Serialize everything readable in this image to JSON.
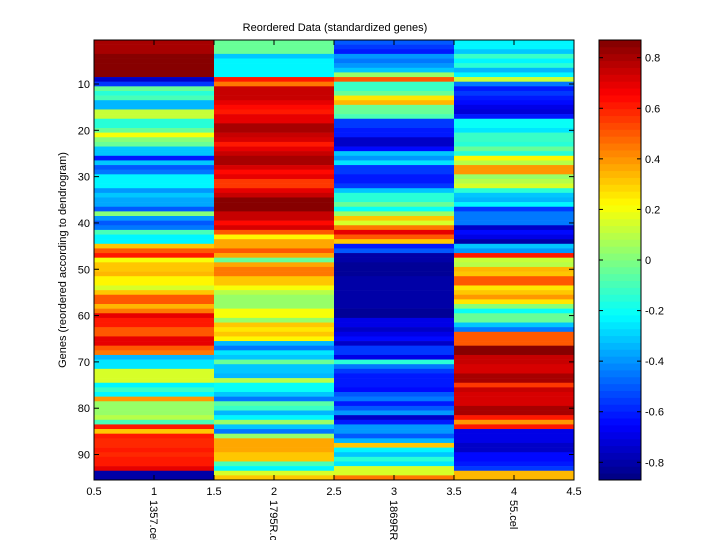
{
  "chart_data": {
    "type": "heatmap",
    "title": "Reordered Data (standardized genes)",
    "xlabel": "",
    "ylabel": "Genes (reordered according to dendrogram)",
    "colormap": "jet",
    "clim": [
      -0.87,
      0.87
    ],
    "xlim": [
      0.5,
      4.5
    ],
    "ylim": [
      0.5,
      95.5
    ],
    "y_reversed": true,
    "x_ticks": [
      "0.5",
      "1",
      "1.5",
      "2",
      "2.5",
      "3",
      "3.5",
      "4",
      "4.5"
    ],
    "x_tick_values": [
      0.5,
      1,
      1.5,
      2,
      2.5,
      3,
      3.5,
      4,
      4.5
    ],
    "y_ticks": [
      "10",
      "20",
      "30",
      "40",
      "50",
      "60",
      "70",
      "80",
      "90"
    ],
    "y_tick_values": [
      10,
      20,
      30,
      40,
      50,
      60,
      70,
      80,
      90
    ],
    "column_labels": [
      "1357.cel",
      "1795R.c",
      "1869RR",
      "55.cel"
    ],
    "colorbar": {
      "ticks": [
        "0.8",
        "0.6",
        "0.4",
        "0.2",
        "0",
        "-0.2",
        "-0.4",
        "-0.6",
        "-0.8"
      ],
      "tick_values": [
        0.8,
        0.6,
        0.4,
        0.2,
        0,
        -0.2,
        -0.4,
        -0.6,
        -0.8
      ],
      "placement": "right"
    },
    "grid": false,
    "columns": [
      {
        "name": "1357.cel",
        "values": [
          0.8,
          0.8,
          0.8,
          0.85,
          0.85,
          0.85,
          0.85,
          0.85,
          -0.75,
          -0.55,
          -0.05,
          -0.15,
          -0.1,
          -0.35,
          -0.35,
          0.12,
          0.12,
          -0.15,
          -0.15,
          -0.05,
          0.2,
          0.0,
          -0.05,
          -0.3,
          -0.3,
          -0.6,
          -0.3,
          -0.5,
          -0.45,
          -0.22,
          -0.22,
          -0.22,
          -0.4,
          -0.3,
          -0.38,
          -0.38,
          -0.5,
          0.0,
          -0.4,
          -0.5,
          -0.45,
          -0.1,
          -0.22,
          -0.22,
          0.3,
          0.5,
          0.6,
          0.2,
          0.3,
          0.3,
          0.35,
          0.22,
          0.22,
          0.15,
          0.3,
          0.5,
          0.5,
          0.35,
          0.45,
          0.7,
          0.62,
          0.62,
          0.5,
          0.5,
          0.7,
          0.7,
          0.5,
          0.45,
          -0.35,
          -0.25,
          -0.25,
          0.15,
          0.15,
          0.15,
          -0.22,
          -0.12,
          -0.22,
          0.4,
          0.05,
          0.05,
          0.05,
          0.1,
          -0.1,
          0.6,
          0.3,
          0.6,
          0.58,
          0.58,
          0.6,
          0.58,
          0.62,
          0.62,
          0.7,
          -0.8,
          -0.8
        ]
      },
      {
        "name": "1795R.c",
        "values": [
          -0.05,
          -0.05,
          -0.05,
          -0.3,
          -0.22,
          -0.22,
          -0.22,
          -0.22,
          0.62,
          0.45,
          0.75,
          0.75,
          0.75,
          0.7,
          0.65,
          0.62,
          0.68,
          0.68,
          0.8,
          0.8,
          0.75,
          0.72,
          0.62,
          0.68,
          0.75,
          0.8,
          0.8,
          0.72,
          0.65,
          0.68,
          0.56,
          0.56,
          0.68,
          0.75,
          0.85,
          0.85,
          0.85,
          0.75,
          0.75,
          0.65,
          0.72,
          0.5,
          0.22,
          0.38,
          0.38,
          0.5,
          0.38,
          -0.05,
          0.38,
          0.45,
          0.45,
          0.3,
          0.3,
          0.2,
          0.1,
          0.05,
          0.05,
          0.05,
          0.2,
          0.2,
          0.05,
          0.3,
          0.25,
          0.3,
          0.22,
          -0.35,
          -0.45,
          -0.25,
          -0.3,
          -0.05,
          -0.3,
          -0.3,
          -0.35,
          0.1,
          -0.2,
          -0.2,
          -0.3,
          -0.45,
          -0.08,
          -0.12,
          -0.35,
          -0.22,
          0.05,
          -0.3,
          -0.45,
          0.05,
          0.38,
          0.38,
          0.38,
          0.3,
          0.3,
          -0.1,
          -0.22,
          0.15,
          0.3
        ]
      },
      {
        "name": "1869RR",
        "values": [
          -0.5,
          -0.55,
          -0.6,
          -0.4,
          -0.45,
          -0.4,
          -0.3,
          0.05,
          0.5,
          -0.12,
          -0.12,
          -0.05,
          0.25,
          0.35,
          -0.05,
          -0.05,
          -0.1,
          -0.55,
          -0.55,
          -0.6,
          -0.6,
          -0.75,
          -0.75,
          -0.65,
          -0.3,
          -0.4,
          -0.25,
          -0.55,
          -0.55,
          -0.6,
          -0.6,
          -0.55,
          -0.3,
          -0.15,
          -0.15,
          -0.05,
          -0.2,
          0.05,
          0.3,
          0.15,
          0.45,
          0.7,
          0.5,
          0.3,
          -0.6,
          -0.5,
          -0.8,
          -0.8,
          -0.82,
          -0.82,
          -0.82,
          -0.8,
          -0.8,
          -0.8,
          -0.8,
          -0.8,
          -0.8,
          -0.8,
          -0.82,
          -0.82,
          -0.7,
          -0.7,
          -0.75,
          -0.7,
          -0.65,
          -0.75,
          -0.55,
          -0.55,
          -0.7,
          -0.15,
          -0.45,
          -0.55,
          -0.6,
          -0.6,
          -0.6,
          -0.65,
          -0.5,
          -0.45,
          -0.6,
          -0.5,
          -0.4,
          -0.75,
          -0.6,
          -0.4,
          -0.4,
          -0.5,
          -0.35,
          0.3,
          -0.22,
          -0.3,
          -0.15,
          -0.25,
          0.15,
          0.15,
          0.45
        ]
      },
      {
        "name": "55.cel",
        "values": [
          -0.22,
          -0.22,
          -0.3,
          -0.12,
          -0.22,
          -0.15,
          -0.35,
          -0.22,
          0.12,
          -0.45,
          -0.6,
          -0.55,
          -0.6,
          -0.65,
          -0.7,
          -0.72,
          -0.6,
          -0.2,
          -0.2,
          -0.25,
          -0.12,
          -0.12,
          -0.15,
          -0.05,
          -0.15,
          0.22,
          0.1,
          0.4,
          0.4,
          0.05,
          0.1,
          0.15,
          -0.15,
          -0.3,
          -0.35,
          -0.22,
          -0.55,
          -0.45,
          -0.45,
          -0.45,
          -0.75,
          -0.65,
          -0.7,
          -0.8,
          -0.3,
          -0.4,
          0.6,
          0.12,
          0.1,
          0.35,
          0.3,
          0.5,
          0.5,
          0.25,
          0.3,
          0.4,
          0.25,
          0.0,
          -0.2,
          -0.05,
          -0.05,
          -0.3,
          -0.45,
          0.5,
          0.5,
          0.5,
          0.85,
          0.85,
          0.75,
          0.75,
          0.72,
          0.72,
          0.8,
          0.8,
          0.55,
          0.75,
          0.72,
          0.72,
          0.72,
          0.8,
          0.8,
          0.6,
          0.4,
          0.6,
          -0.7,
          -0.7,
          -0.7,
          -0.75,
          -0.75,
          -0.65,
          -0.65,
          -0.6,
          -0.55,
          0.35,
          0.35
        ]
      }
    ]
  }
}
